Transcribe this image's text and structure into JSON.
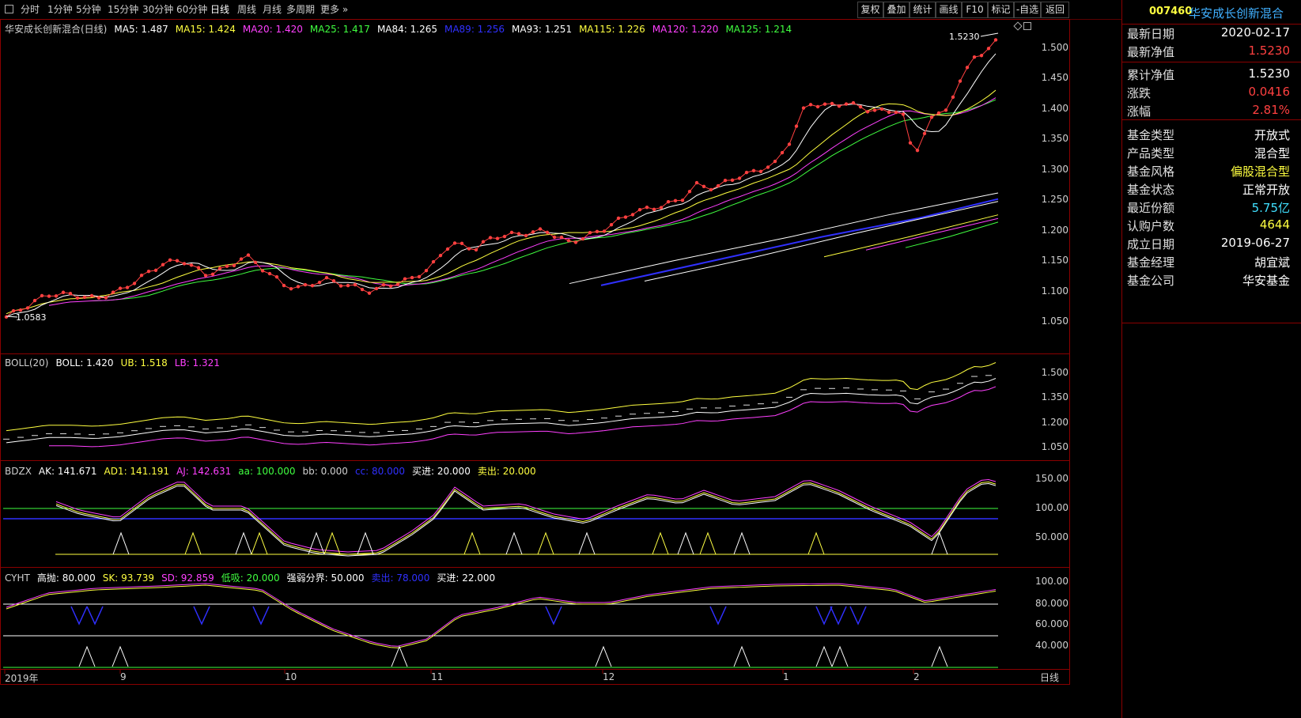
{
  "toolbar": {
    "periods": [
      "分时",
      "1分钟",
      "5分钟",
      "15分钟",
      "30分钟",
      "60分钟",
      "日线",
      "周线",
      "月线",
      "多周期",
      "更多"
    ],
    "active_period": "日线",
    "right_buttons": [
      "复权",
      "叠加",
      "统计",
      "画线",
      "F10",
      "标记",
      "-自选",
      "返回"
    ]
  },
  "main_panel": {
    "title": "华安成长创新混合(日线)",
    "ma_legend": [
      {
        "label": "MA5: 1.487",
        "color": "#ffffff"
      },
      {
        "label": "MA15: 1.424",
        "color": "#ffff40"
      },
      {
        "label": "MA20: 1.420",
        "color": "#ff40ff"
      },
      {
        "label": "MA25: 1.417",
        "color": "#40ff40"
      },
      {
        "label": "MA84: 1.265",
        "color": "#ffffff"
      },
      {
        "label": "MA89: 1.256",
        "color": "#3030ff"
      },
      {
        "label": "MA93: 1.251",
        "color": "#ffffff"
      },
      {
        "label": "MA115: 1.226",
        "color": "#ffff40"
      },
      {
        "label": "MA120: 1.220",
        "color": "#ff40ff"
      },
      {
        "label": "MA125: 1.214",
        "color": "#40ff40"
      }
    ],
    "high_label": "1.5230",
    "low_label": "1.0583",
    "y_ticks": [
      "1.500",
      "1.450",
      "1.400",
      "1.350",
      "1.300",
      "1.250",
      "1.200",
      "1.150",
      "1.100",
      "1.050"
    ]
  },
  "boll_panel": {
    "legend": [
      {
        "label": "BOLL(20)",
        "color": "#d0d0d0"
      },
      {
        "label": "BOLL: 1.420",
        "color": "#ffffff"
      },
      {
        "label": "UB: 1.518",
        "color": "#ffff40"
      },
      {
        "label": "LB: 1.321",
        "color": "#ff40ff"
      }
    ],
    "y_ticks": [
      "1.500",
      "1.350",
      "1.200",
      "1.050"
    ]
  },
  "bdzx_panel": {
    "legend": [
      {
        "label": "BDZX",
        "color": "#d0d0d0"
      },
      {
        "label": "AK: 141.671",
        "color": "#ffffff"
      },
      {
        "label": "AD1: 141.191",
        "color": "#ffff40"
      },
      {
        "label": "AJ: 142.631",
        "color": "#ff40ff"
      },
      {
        "label": "aa: 100.000",
        "color": "#40ff40"
      },
      {
        "label": "bb: 0.000",
        "color": "#d0d0d0"
      },
      {
        "label": "cc: 80.000",
        "color": "#3030ff"
      },
      {
        "label": "买进: 20.000",
        "color": "#ffffff"
      },
      {
        "label": "卖出: 20.000",
        "color": "#ffff40"
      }
    ],
    "y_ticks": [
      "150.00",
      "100.00",
      "50.000"
    ]
  },
  "cyht_panel": {
    "legend": [
      {
        "label": "CYHT",
        "color": "#d0d0d0"
      },
      {
        "label": "高抛: 80.000",
        "color": "#ffffff"
      },
      {
        "label": "SK: 93.739",
        "color": "#ffff40"
      },
      {
        "label": "SD: 92.859",
        "color": "#ff40ff"
      },
      {
        "label": "低吸: 20.000",
        "color": "#40ff40"
      },
      {
        "label": "强弱分界: 50.000",
        "color": "#ffffff"
      },
      {
        "label": "卖出: 78.000",
        "color": "#3030ff"
      },
      {
        "label": "买进: 22.000",
        "color": "#ffffff"
      }
    ],
    "y_ticks": [
      "100.00",
      "80.000",
      "60.000",
      "40.000"
    ]
  },
  "x_axis": {
    "labels": [
      "2019年",
      "9",
      "10",
      "11",
      "12",
      "1",
      "2"
    ],
    "period_tag": "日线"
  },
  "info_panel": {
    "code": "007460",
    "name": "华安成长创新混合",
    "rows": [
      {
        "k": "最新日期",
        "v": "2020-02-17",
        "color": "#ffffff"
      },
      {
        "k": "最新净值",
        "v": "1.5230",
        "color": "#ff4040"
      },
      {
        "k": "累计净值",
        "v": "1.5230",
        "color": "#ffffff"
      },
      {
        "k": "涨跌",
        "v": "0.0416",
        "color": "#ff4040"
      },
      {
        "k": "涨幅",
        "v": "2.81%",
        "color": "#ff4040"
      },
      {
        "k": "基金类型",
        "v": "开放式",
        "color": "#ffffff"
      },
      {
        "k": "产品类型",
        "v": "混合型",
        "color": "#ffffff"
      },
      {
        "k": "基金风格",
        "v": "偏股混合型",
        "color": "#ffff40"
      },
      {
        "k": "基金状态",
        "v": "正常开放",
        "color": "#ffffff"
      },
      {
        "k": "最近份额",
        "v": "5.75亿",
        "color": "#40e0ff"
      },
      {
        "k": "认购户数",
        "v": "4644",
        "color": "#ffff40"
      },
      {
        "k": "成立日期",
        "v": "2019-06-27",
        "color": "#ffffff"
      },
      {
        "k": "基金经理",
        "v": "胡宜斌",
        "color": "#ffffff"
      },
      {
        "k": "基金公司",
        "v": "华安基金",
        "color": "#ffffff"
      }
    ]
  }
}
